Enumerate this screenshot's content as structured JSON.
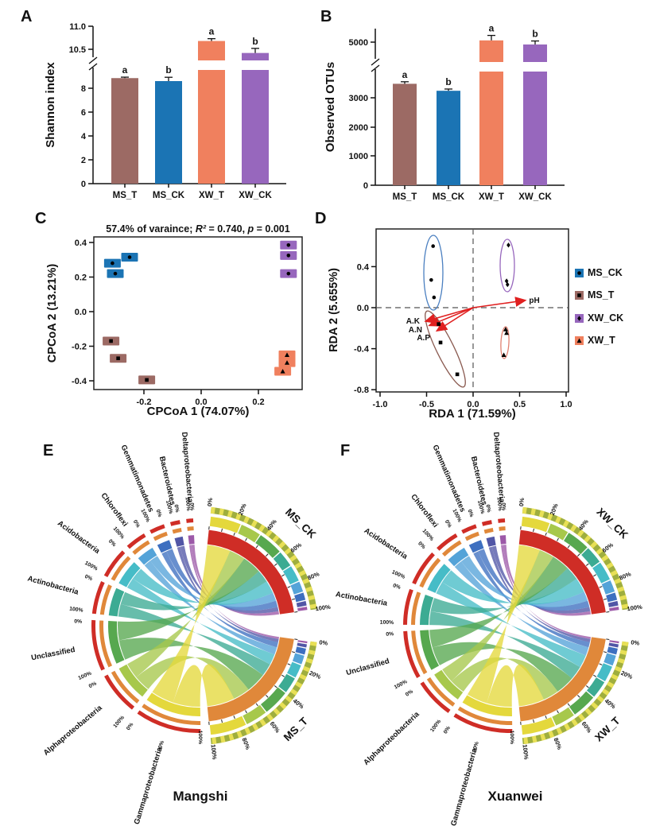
{
  "chart_data": [
    {
      "panel": "A",
      "type": "bar",
      "ylabel": "Shannon index",
      "categories": [
        "MS_T",
        "MS_CK",
        "XW_T",
        "XW_CK"
      ],
      "values": [
        8.85,
        8.6,
        10.68,
        10.42
      ],
      "errors": [
        0.08,
        0.32,
        0.05,
        0.1
      ],
      "sig_letters": [
        "a",
        "b",
        "a",
        "b"
      ],
      "bar_colors": [
        "#9c6a64",
        "#1b74b4",
        "#f0805e",
        "#9767bd"
      ],
      "yticks_lower": [
        "0",
        "2",
        "4",
        "6",
        "8"
      ],
      "yticks_upper": [
        "10.5",
        "11.0"
      ],
      "axis_break": true
    },
    {
      "panel": "B",
      "type": "bar",
      "ylabel": "Observed OTUs",
      "categories": [
        "MS_T",
        "MS_CK",
        "XW_T",
        "XW_CK"
      ],
      "values": [
        3480,
        3240,
        5060,
        4920
      ],
      "errors": [
        70,
        60,
        170,
        120
      ],
      "sig_letters": [
        "a",
        "b",
        "a",
        "b"
      ],
      "bar_colors": [
        "#9c6a64",
        "#1b74b4",
        "#f0805e",
        "#9767bd"
      ],
      "yticks_lower": [
        "0",
        "1000",
        "2000",
        "3000"
      ],
      "yticks_upper": [
        "5000"
      ],
      "axis_break": true
    },
    {
      "panel": "C",
      "type": "scatter",
      "title_parts": [
        {
          "text": "57.4% of varaince; ",
          "italic": false
        },
        {
          "text": "R²",
          "italic": true
        },
        {
          "text": " = 0.740, ",
          "italic": false
        },
        {
          "text": "p",
          "italic": true
        },
        {
          "text": " = 0.001",
          "italic": false
        }
      ],
      "xlabel": "CPCoA 1 (74.07%)",
      "ylabel": "CPCoA 2 (13.21%)",
      "xticks": [
        "-0.2",
        "0.0",
        "0.2"
      ],
      "yticks": [
        "0.4",
        "0.2",
        "0.0",
        "-0.2",
        "-0.4"
      ],
      "series": [
        {
          "name": "MS_CK",
          "color": "#1b74b4",
          "marker": "dot",
          "points": [
            [
              -0.31,
              0.28
            ],
            [
              -0.25,
              0.315
            ],
            [
              -0.3,
              0.22
            ]
          ]
        },
        {
          "name": "XW_CK",
          "color": "#9767bd",
          "marker": "dot",
          "points": [
            [
              0.305,
              0.385
            ],
            [
              0.305,
              0.325
            ],
            [
              0.305,
              0.22
            ]
          ]
        },
        {
          "name": "MS_T",
          "color": "#9c6a64",
          "marker": "square",
          "points": [
            [
              -0.315,
              -0.17
            ],
            [
              -0.29,
              -0.27
            ],
            [
              -0.19,
              -0.395
            ]
          ]
        },
        {
          "name": "XW_T",
          "color": "#f0805e",
          "marker": "triangle",
          "points": [
            [
              0.3,
              -0.25
            ],
            [
              0.3,
              -0.295
            ],
            [
              0.285,
              -0.345
            ]
          ]
        }
      ]
    },
    {
      "panel": "D",
      "type": "rda-scatter",
      "xlabel": "RDA 1 (71.59%)",
      "ylabel": "RDA 2 (5.655%)",
      "xticks": [
        "-1.0",
        "-0.5",
        "0.0",
        "0.5",
        "1.0"
      ],
      "yticks": [
        "0.4",
        "0.0",
        "-0.4",
        "-0.8"
      ],
      "arrows": [
        {
          "label": "pH",
          "x": 0.55,
          "y": 0.07
        },
        {
          "label": "A.K",
          "x": -0.5,
          "y": -0.13
        },
        {
          "label": "A.N",
          "x": -0.46,
          "y": -0.17
        },
        {
          "label": "A.P",
          "x": -0.38,
          "y": -0.22
        }
      ],
      "series": [
        {
          "name": "MS_CK",
          "color": "#1b74b4",
          "marker": "dot",
          "points": [
            [
              -0.43,
              0.6
            ],
            [
              -0.45,
              0.27
            ],
            [
              -0.42,
              0.1
            ]
          ]
        },
        {
          "name": "MS_T",
          "color": "#9c6a64",
          "marker": "square",
          "points": [
            [
              -0.37,
              -0.16
            ],
            [
              -0.35,
              -0.34
            ],
            [
              -0.17,
              -0.65
            ]
          ]
        },
        {
          "name": "XW_CK",
          "color": "#9767bd",
          "marker": "star",
          "points": [
            [
              0.38,
              0.61
            ],
            [
              0.36,
              0.26
            ],
            [
              0.37,
              0.225
            ]
          ]
        },
        {
          "name": "XW_T",
          "color": "#f0805e",
          "marker": "triangle",
          "points": [
            [
              0.35,
              -0.21
            ],
            [
              0.36,
              -0.245
            ],
            [
              0.33,
              -0.46
            ]
          ]
        }
      ],
      "legend": [
        {
          "label": "MS_CK",
          "color": "#1b74b4",
          "marker": "dot"
        },
        {
          "label": "MS_T",
          "color": "#9c6a64",
          "marker": "square"
        },
        {
          "label": "XW_CK",
          "color": "#9767bd",
          "marker": "star"
        },
        {
          "label": "XW_T",
          "color": "#f0805e",
          "marker": "triangle"
        }
      ]
    },
    {
      "panel": "E",
      "type": "chord",
      "title": "Mangshi",
      "groups": [
        {
          "name": "MS_CK",
          "color": "#cf2d26"
        },
        {
          "name": "MS_T",
          "color": "#e0883a"
        }
      ],
      "taxa": [
        {
          "name": "Deltaproteobacteria",
          "color": "#9c59a8",
          "values": [
            3,
            2
          ]
        },
        {
          "name": "Bacteroidetes",
          "color": "#5156a6",
          "values": [
            4,
            3
          ]
        },
        {
          "name": "Gemmatimonadetes",
          "color": "#3d6fc0",
          "values": [
            6,
            5
          ]
        },
        {
          "name": "Chloroflexi",
          "color": "#54a3d8",
          "values": [
            8,
            7
          ]
        },
        {
          "name": "Acidobacteria",
          "color": "#46bcc7",
          "values": [
            12,
            10
          ]
        },
        {
          "name": "Actinobacteria",
          "color": "#3cab93",
          "values": [
            12,
            12
          ]
        },
        {
          "name": "Unclassified",
          "color": "#57a84f",
          "values": [
            18,
            19
          ]
        },
        {
          "name": "Alphaproteobacteria",
          "color": "#a7c84b",
          "values": [
            15,
            16
          ]
        },
        {
          "name": "Gammaproteobacteria",
          "color": "#e4d83c",
          "values": [
            22,
            26
          ]
        }
      ],
      "percent_ticks": [
        "0%",
        "20%",
        "40%",
        "60%",
        "80%",
        "100%"
      ],
      "taxon_tick_start": "0%",
      "taxon_tick_end": "100%",
      "gamma_mid_tick": "50%"
    },
    {
      "panel": "F",
      "type": "chord",
      "title": "Xuanwei",
      "groups": [
        {
          "name": "XW_CK",
          "color": "#cf2d26"
        },
        {
          "name": "XW_T",
          "color": "#e0883a"
        }
      ],
      "taxa": [
        {
          "name": "Deltaproteobacteria",
          "color": "#9c59a8",
          "values": [
            3,
            2
          ]
        },
        {
          "name": "Bacteroidetes",
          "color": "#5156a6",
          "values": [
            4,
            3
          ]
        },
        {
          "name": "Gemmatimonadetes",
          "color": "#3d6fc0",
          "values": [
            6,
            5
          ]
        },
        {
          "name": "Chloroflexi",
          "color": "#54a3d8",
          "values": [
            9,
            8
          ]
        },
        {
          "name": "Acidobacteria",
          "color": "#46bcc7",
          "values": [
            14,
            12
          ]
        },
        {
          "name": "Actinobacteria",
          "color": "#3cab93",
          "values": [
            13,
            13
          ]
        },
        {
          "name": "Unclassified",
          "color": "#57a84f",
          "values": [
            17,
            18
          ]
        },
        {
          "name": "Alphaproteobacteria",
          "color": "#a7c84b",
          "values": [
            14,
            15
          ]
        },
        {
          "name": "Gammaproteobacteria",
          "color": "#e4d83c",
          "values": [
            20,
            24
          ]
        }
      ],
      "percent_ticks": [
        "0%",
        "20%",
        "40%",
        "60%",
        "80%",
        "100%"
      ],
      "taxon_tick_start": "0%",
      "taxon_tick_end": "100%",
      "gamma_mid_tick": "50%"
    }
  ]
}
